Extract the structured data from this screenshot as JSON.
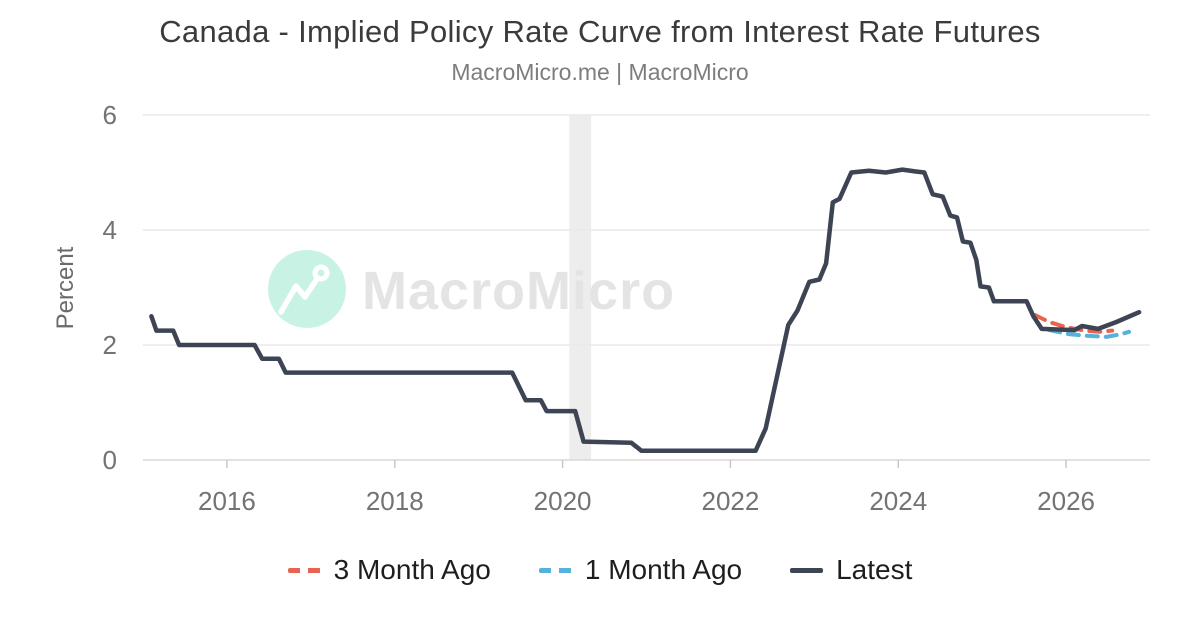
{
  "header": {
    "title": "Canada - Implied Policy Rate Curve from Interest Rate Futures",
    "subtitle": "MacroMicro.me | MacroMicro"
  },
  "watermark": {
    "text": "MacroMicro",
    "circle_color": "#c8f3e4",
    "text_color": "#e4e4e4"
  },
  "chart_data": {
    "type": "line",
    "title": "Canada - Implied Policy Rate Curve from Interest Rate Futures",
    "subtitle": "MacroMicro.me | MacroMicro",
    "xlabel": "",
    "ylabel": "Percent",
    "xlim": [
      2015,
      2027
    ],
    "ylim": [
      0,
      6
    ],
    "yticks": [
      0,
      2,
      4,
      6
    ],
    "xticks": [
      2016,
      2018,
      2020,
      2022,
      2024,
      2026
    ],
    "grid": "horizontal",
    "legend_position": "bottom",
    "recession_band": {
      "from": 2020.08,
      "to": 2020.34
    },
    "style": {
      "grid_color": "#e9e9e9",
      "zero_line_color": "#d9d9d9",
      "tick_mark_color": "#c9c9c9",
      "band_color": "#ededed"
    },
    "series": [
      {
        "name": "3 Month Ago",
        "color": "#e96450",
        "line_style": "dashed",
        "points": [
          [
            2025.63,
            2.52
          ],
          [
            2025.8,
            2.4
          ],
          [
            2026.0,
            2.31
          ],
          [
            2026.22,
            2.25
          ],
          [
            2026.4,
            2.23
          ],
          [
            2026.55,
            2.25
          ]
        ]
      },
      {
        "name": "1 Month Ago",
        "color": "#55b1dd",
        "line_style": "dashed",
        "points": [
          [
            2025.8,
            2.26
          ],
          [
            2026.03,
            2.19
          ],
          [
            2026.25,
            2.16
          ],
          [
            2026.48,
            2.14
          ],
          [
            2026.66,
            2.19
          ],
          [
            2026.75,
            2.23
          ]
        ]
      },
      {
        "name": "Latest",
        "color": "#3d4454",
        "line_style": "solid",
        "points": [
          [
            2015.1,
            2.5
          ],
          [
            2015.16,
            2.25
          ],
          [
            2015.36,
            2.25
          ],
          [
            2015.43,
            2.0
          ],
          [
            2016.33,
            2.0
          ],
          [
            2016.42,
            1.76
          ],
          [
            2016.62,
            1.76
          ],
          [
            2016.7,
            1.52
          ],
          [
            2019.4,
            1.52
          ],
          [
            2019.56,
            1.04
          ],
          [
            2019.74,
            1.04
          ],
          [
            2019.81,
            0.85
          ],
          [
            2020.15,
            0.85
          ],
          [
            2020.25,
            0.32
          ],
          [
            2020.82,
            0.3
          ],
          [
            2020.94,
            0.16
          ],
          [
            2022.3,
            0.16
          ],
          [
            2022.42,
            0.55
          ],
          [
            2022.69,
            2.35
          ],
          [
            2022.8,
            2.6
          ],
          [
            2022.94,
            3.1
          ],
          [
            2023.06,
            3.14
          ],
          [
            2023.14,
            3.42
          ],
          [
            2023.22,
            4.48
          ],
          [
            2023.3,
            4.54
          ],
          [
            2023.44,
            5.0
          ],
          [
            2023.65,
            5.03
          ],
          [
            2023.85,
            5.0
          ],
          [
            2024.05,
            5.05
          ],
          [
            2024.2,
            5.02
          ],
          [
            2024.31,
            5.0
          ],
          [
            2024.41,
            4.62
          ],
          [
            2024.53,
            4.58
          ],
          [
            2024.62,
            4.25
          ],
          [
            2024.7,
            4.22
          ],
          [
            2024.77,
            3.8
          ],
          [
            2024.86,
            3.78
          ],
          [
            2024.93,
            3.48
          ],
          [
            2024.98,
            3.02
          ],
          [
            2025.08,
            3.0
          ],
          [
            2025.14,
            2.76
          ],
          [
            2025.53,
            2.76
          ],
          [
            2025.61,
            2.5
          ],
          [
            2025.71,
            2.28
          ],
          [
            2026.1,
            2.26
          ],
          [
            2026.19,
            2.33
          ],
          [
            2026.38,
            2.28
          ],
          [
            2026.6,
            2.4
          ],
          [
            2026.87,
            2.57
          ]
        ]
      }
    ]
  },
  "legend": {
    "items": [
      {
        "label": "3 Month Ago",
        "color": "#e96450",
        "style": "dashed"
      },
      {
        "label": "1 Month Ago",
        "color": "#55b1dd",
        "style": "dashed"
      },
      {
        "label": "Latest",
        "color": "#3d4454",
        "style": "solid"
      }
    ]
  }
}
